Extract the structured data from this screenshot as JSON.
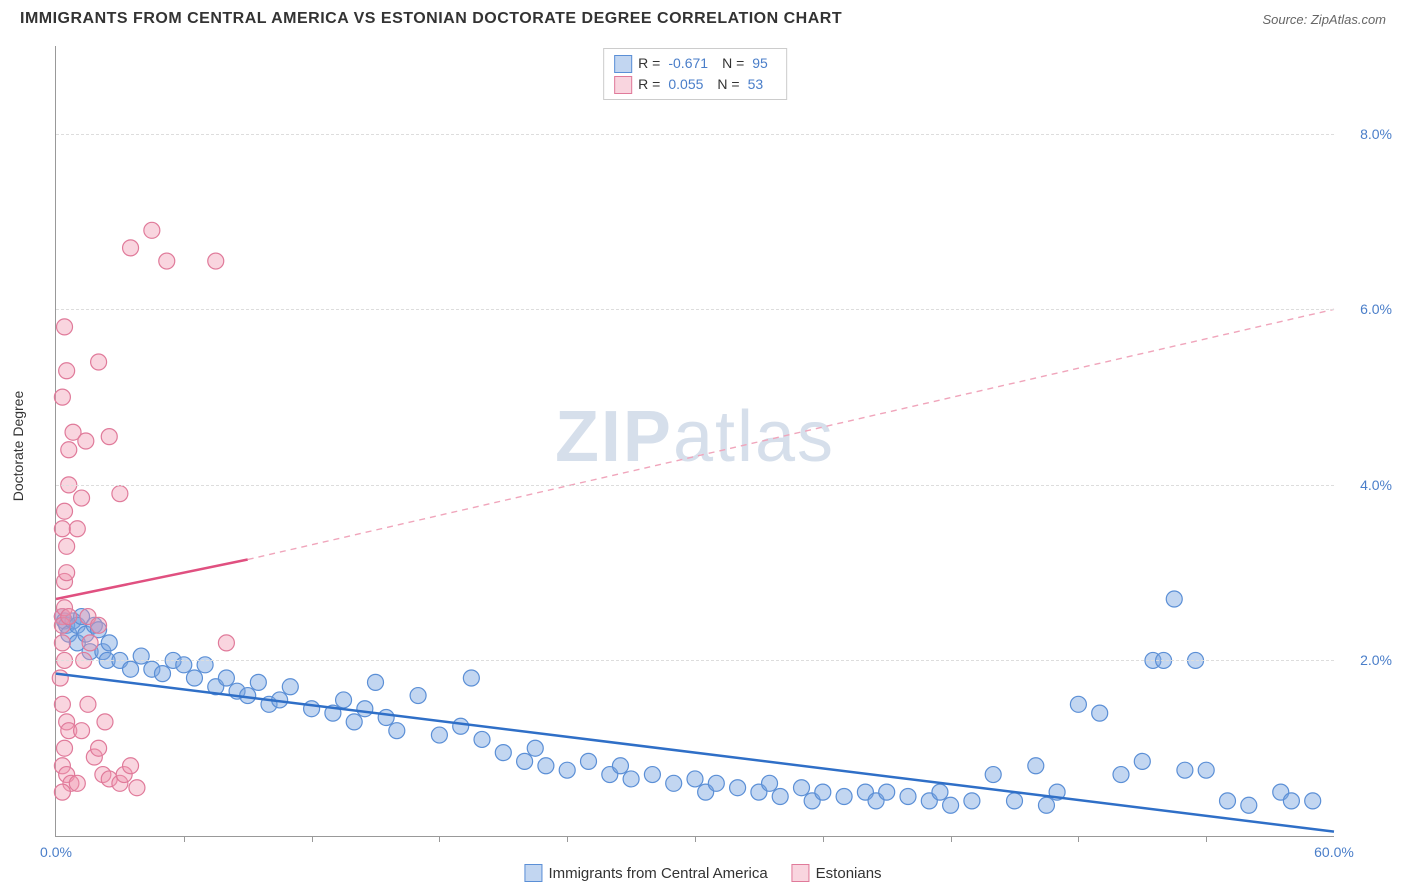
{
  "header": {
    "title": "IMMIGRANTS FROM CENTRAL AMERICA VS ESTONIAN DOCTORATE DEGREE CORRELATION CHART",
    "source": "Source: ZipAtlas.com"
  },
  "watermark": {
    "bold": "ZIP",
    "light": "atlas"
  },
  "chart": {
    "type": "scatter",
    "xlim": [
      0,
      60
    ],
    "ylim": [
      0,
      9
    ],
    "x_ticks": [
      0,
      60
    ],
    "x_tick_labels": [
      "0.0%",
      "60.0%"
    ],
    "x_minor_ticks": [
      6,
      12,
      18,
      24,
      30,
      36,
      42,
      48,
      54
    ],
    "y_ticks": [
      2,
      4,
      6,
      8
    ],
    "y_tick_labels": [
      "2.0%",
      "4.0%",
      "6.0%",
      "8.0%"
    ],
    "ylabel": "Doctorate Degree",
    "background_color": "#ffffff",
    "grid_color": "#dddddd",
    "axis_color": "#999999",
    "series": [
      {
        "name": "Immigrants from Central America",
        "key": "central_america",
        "color_fill": "rgba(120,165,225,0.45)",
        "color_stroke": "#5b8fd6",
        "marker_radius": 8,
        "R": "-0.671",
        "N": "95",
        "trend": {
          "x1": 0,
          "y1": 1.85,
          "x2": 60,
          "y2": 0.05,
          "stroke": "#2f6fc7",
          "width": 2.5,
          "dash": ""
        },
        "points": [
          [
            0.3,
            2.5
          ],
          [
            0.4,
            2.45
          ],
          [
            0.5,
            2.4
          ],
          [
            0.6,
            2.3
          ],
          [
            0.8,
            2.45
          ],
          [
            1.0,
            2.4
          ],
          [
            1.2,
            2.5
          ],
          [
            1.0,
            2.2
          ],
          [
            1.4,
            2.3
          ],
          [
            1.6,
            2.1
          ],
          [
            1.8,
            2.4
          ],
          [
            2.0,
            2.35
          ],
          [
            2.2,
            2.1
          ],
          [
            2.4,
            2.0
          ],
          [
            2.5,
            2.2
          ],
          [
            3.0,
            2.0
          ],
          [
            3.5,
            1.9
          ],
          [
            4.0,
            2.05
          ],
          [
            4.5,
            1.9
          ],
          [
            5.0,
            1.85
          ],
          [
            5.5,
            2.0
          ],
          [
            6.0,
            1.95
          ],
          [
            6.5,
            1.8
          ],
          [
            7.0,
            1.95
          ],
          [
            7.5,
            1.7
          ],
          [
            8.0,
            1.8
          ],
          [
            8.5,
            1.65
          ],
          [
            9.0,
            1.6
          ],
          [
            9.5,
            1.75
          ],
          [
            10.0,
            1.5
          ],
          [
            10.5,
            1.55
          ],
          [
            11.0,
            1.7
          ],
          [
            12.0,
            1.45
          ],
          [
            13.0,
            1.4
          ],
          [
            13.5,
            1.55
          ],
          [
            14.0,
            1.3
          ],
          [
            14.5,
            1.45
          ],
          [
            15.0,
            1.75
          ],
          [
            15.5,
            1.35
          ],
          [
            16.0,
            1.2
          ],
          [
            17.0,
            1.6
          ],
          [
            18.0,
            1.15
          ],
          [
            19.0,
            1.25
          ],
          [
            19.5,
            1.8
          ],
          [
            20.0,
            1.1
          ],
          [
            21.0,
            0.95
          ],
          [
            22.0,
            0.85
          ],
          [
            22.5,
            1.0
          ],
          [
            23.0,
            0.8
          ],
          [
            24.0,
            0.75
          ],
          [
            25.0,
            0.85
          ],
          [
            26.0,
            0.7
          ],
          [
            26.5,
            0.8
          ],
          [
            27.0,
            0.65
          ],
          [
            28.0,
            0.7
          ],
          [
            29.0,
            0.6
          ],
          [
            30.0,
            0.65
          ],
          [
            30.5,
            0.5
          ],
          [
            31.0,
            0.6
          ],
          [
            32.0,
            0.55
          ],
          [
            33.0,
            0.5
          ],
          [
            33.5,
            0.6
          ],
          [
            34.0,
            0.45
          ],
          [
            35.0,
            0.55
          ],
          [
            35.5,
            0.4
          ],
          [
            36.0,
            0.5
          ],
          [
            37.0,
            0.45
          ],
          [
            38.0,
            0.5
          ],
          [
            38.5,
            0.4
          ],
          [
            39.0,
            0.5
          ],
          [
            40.0,
            0.45
          ],
          [
            41.0,
            0.4
          ],
          [
            41.5,
            0.5
          ],
          [
            42.0,
            0.35
          ],
          [
            43.0,
            0.4
          ],
          [
            44.0,
            0.7
          ],
          [
            45.0,
            0.4
          ],
          [
            46.0,
            0.8
          ],
          [
            46.5,
            0.35
          ],
          [
            47.0,
            0.5
          ],
          [
            48.0,
            1.5
          ],
          [
            49.0,
            1.4
          ],
          [
            50.0,
            0.7
          ],
          [
            51.0,
            0.85
          ],
          [
            51.5,
            2.0
          ],
          [
            52.0,
            2.0
          ],
          [
            53.5,
            2.0
          ],
          [
            52.5,
            2.7
          ],
          [
            53.0,
            0.75
          ],
          [
            54.0,
            0.75
          ],
          [
            55.0,
            0.4
          ],
          [
            56.0,
            0.35
          ],
          [
            57.5,
            0.5
          ],
          [
            58.0,
            0.4
          ],
          [
            59.0,
            0.4
          ]
        ]
      },
      {
        "name": "Estonians",
        "key": "estonians",
        "color_fill": "rgba(240,150,175,0.4)",
        "color_stroke": "#e07a9a",
        "marker_radius": 8,
        "R": "0.055",
        "N": "53",
        "trend_solid": {
          "x1": 0,
          "y1": 2.7,
          "x2": 9,
          "y2": 3.15,
          "stroke": "#e05080",
          "width": 2.5
        },
        "trend_dash": {
          "x1": 9,
          "y1": 3.15,
          "x2": 60,
          "y2": 6.0,
          "stroke": "#f0a5bb",
          "width": 1.4,
          "dash": "6 5"
        },
        "points": [
          [
            0.3,
            2.5
          ],
          [
            0.3,
            2.4
          ],
          [
            0.4,
            2.6
          ],
          [
            0.4,
            2.9
          ],
          [
            0.5,
            3.3
          ],
          [
            0.3,
            3.5
          ],
          [
            0.4,
            3.7
          ],
          [
            0.5,
            3.0
          ],
          [
            0.6,
            2.5
          ],
          [
            0.3,
            2.2
          ],
          [
            0.4,
            2.0
          ],
          [
            0.2,
            1.8
          ],
          [
            0.3,
            1.5
          ],
          [
            0.5,
            1.3
          ],
          [
            0.6,
            1.2
          ],
          [
            0.4,
            1.0
          ],
          [
            0.3,
            0.8
          ],
          [
            0.5,
            0.7
          ],
          [
            0.7,
            0.6
          ],
          [
            0.3,
            0.5
          ],
          [
            1.0,
            0.6
          ],
          [
            1.2,
            1.2
          ],
          [
            1.3,
            2.0
          ],
          [
            1.5,
            1.5
          ],
          [
            1.6,
            2.2
          ],
          [
            1.8,
            0.9
          ],
          [
            2.0,
            1.0
          ],
          [
            2.2,
            0.7
          ],
          [
            2.3,
            1.3
          ],
          [
            2.5,
            0.65
          ],
          [
            3.0,
            0.6
          ],
          [
            3.2,
            0.7
          ],
          [
            3.5,
            0.8
          ],
          [
            3.8,
            0.55
          ],
          [
            1.0,
            3.5
          ],
          [
            1.2,
            3.85
          ],
          [
            0.6,
            4.4
          ],
          [
            0.8,
            4.6
          ],
          [
            0.3,
            5.0
          ],
          [
            0.5,
            5.3
          ],
          [
            0.4,
            5.8
          ],
          [
            0.6,
            4.0
          ],
          [
            1.4,
            4.5
          ],
          [
            2.5,
            4.55
          ],
          [
            3.0,
            3.9
          ],
          [
            2.0,
            5.4
          ],
          [
            3.5,
            6.7
          ],
          [
            4.5,
            6.9
          ],
          [
            5.2,
            6.55
          ],
          [
            7.5,
            6.55
          ],
          [
            1.5,
            2.5
          ],
          [
            2.0,
            2.4
          ],
          [
            8.0,
            2.2
          ]
        ]
      }
    ]
  },
  "bottom_legend": {
    "items": [
      {
        "label": "Immigrants from Central America",
        "fill": "rgba(120,165,225,0.45)",
        "stroke": "#5b8fd6"
      },
      {
        "label": "Estonians",
        "fill": "rgba(240,150,175,0.4)",
        "stroke": "#e07a9a"
      }
    ]
  }
}
